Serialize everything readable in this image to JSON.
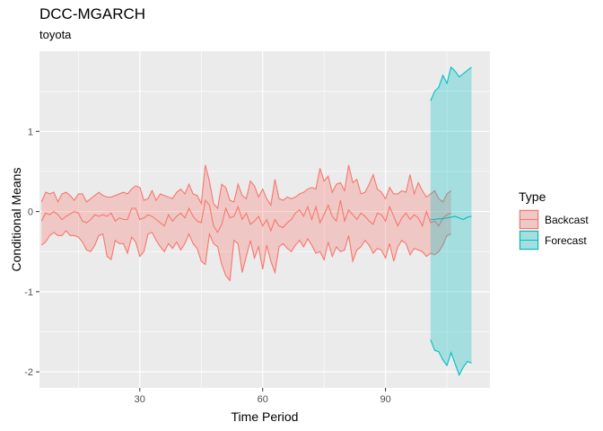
{
  "title": "DCC-MGARCH",
  "subtitle": "toyota",
  "colors": {
    "backcast": "#F8766D",
    "forecast": "#00BFC4",
    "panel": "#EBEBEB",
    "grid": "#FFFFFF"
  },
  "chart_data": {
    "type": "area",
    "title": "DCC-MGARCH",
    "subtitle": "toyota",
    "xlabel": "Time Period",
    "ylabel": "Conditional Means",
    "xlim": [
      5.5,
      115.5
    ],
    "ylim": [
      -2.2,
      2.0
    ],
    "x_ticks": [
      30,
      60,
      90
    ],
    "y_ticks": [
      -2,
      -1,
      0,
      1
    ],
    "x_tick_labels": [
      "30",
      "60",
      "90"
    ],
    "y_tick_labels": [
      "-2",
      "-1",
      "0",
      "1"
    ],
    "grid": true,
    "legend": {
      "title": "Type",
      "position": "right",
      "entries": [
        "Backcast",
        "Forecast"
      ]
    },
    "series": [
      {
        "name": "Backcast",
        "x_start": 6,
        "mean": [
          -0.12,
          -0.02,
          -0.04,
          0.0,
          -0.04,
          -0.1,
          -0.06,
          -0.03,
          0.0,
          -0.02,
          -0.12,
          -0.14,
          -0.1,
          -0.04,
          -0.06,
          -0.04,
          -0.06,
          -0.02,
          -0.12,
          -0.08,
          -0.1,
          -0.1,
          0.04,
          0.04,
          -0.1,
          -0.08,
          -0.04,
          -0.06,
          -0.1,
          -0.14,
          -0.18,
          -0.04,
          -0.12,
          -0.06,
          -0.02,
          -0.08,
          0.04,
          -0.06,
          -0.12,
          -0.14,
          0.14,
          0.08,
          -0.18,
          -0.26,
          -0.16,
          0.04,
          -0.08,
          -0.06,
          0.06,
          -0.1,
          -0.02,
          -0.16,
          -0.12,
          -0.06,
          -0.18,
          -0.1,
          -0.24,
          -0.1,
          -0.18,
          -0.2,
          -0.14,
          -0.1,
          -0.02,
          0.02,
          -0.06,
          0.06,
          -0.1,
          0.06,
          -0.14,
          -0.04,
          0.08,
          -0.06,
          -0.12,
          0.14,
          -0.12,
          0.02,
          -0.04,
          -0.1,
          -0.02,
          -0.06,
          -0.12,
          -0.16,
          -0.02,
          -0.04,
          -0.12,
          0.06,
          -0.06,
          -0.18,
          -0.08,
          -0.02,
          -0.1,
          -0.04,
          -0.08,
          -0.18,
          0.0,
          -0.14,
          -0.12,
          -0.18,
          -0.08,
          -0.04,
          -0.02
        ],
        "upper": [
          0.12,
          0.24,
          0.22,
          0.24,
          0.12,
          0.22,
          0.24,
          0.2,
          0.14,
          0.22,
          0.22,
          0.12,
          0.16,
          0.2,
          0.24,
          0.2,
          0.18,
          0.18,
          0.2,
          0.22,
          0.24,
          0.22,
          0.28,
          0.32,
          0.3,
          0.14,
          0.16,
          0.26,
          0.14,
          0.22,
          0.2,
          0.18,
          0.16,
          0.24,
          0.28,
          0.22,
          0.34,
          0.22,
          0.2,
          0.1,
          0.58,
          0.38,
          0.1,
          0.04,
          0.34,
          0.3,
          0.14,
          0.12,
          0.34,
          0.2,
          0.16,
          0.38,
          0.32,
          0.18,
          0.28,
          0.16,
          0.08,
          0.4,
          0.16,
          0.14,
          0.18,
          0.16,
          0.18,
          0.22,
          0.24,
          0.28,
          0.3,
          0.28,
          0.54,
          0.38,
          0.44,
          0.24,
          0.34,
          0.36,
          0.26,
          0.58,
          0.36,
          0.4,
          0.22,
          0.24,
          0.34,
          0.46,
          0.28,
          0.24,
          0.16,
          0.3,
          0.22,
          0.22,
          0.26,
          0.24,
          0.46,
          0.22,
          0.36,
          0.26,
          0.18,
          0.22,
          0.26,
          0.16,
          0.12,
          0.22,
          0.26
        ],
        "lower": [
          -0.42,
          -0.38,
          -0.3,
          -0.26,
          -0.3,
          -0.3,
          -0.24,
          -0.3,
          -0.3,
          -0.32,
          -0.38,
          -0.48,
          -0.5,
          -0.42,
          -0.3,
          -0.28,
          -0.56,
          -0.6,
          -0.36,
          -0.4,
          -0.4,
          -0.52,
          -0.32,
          -0.38,
          -0.56,
          -0.5,
          -0.28,
          -0.26,
          -0.36,
          -0.44,
          -0.5,
          -0.4,
          -0.46,
          -0.38,
          -0.48,
          -0.4,
          -0.28,
          -0.4,
          -0.46,
          -0.62,
          -0.66,
          -0.28,
          -0.4,
          -0.44,
          -0.66,
          -0.8,
          -0.86,
          -0.36,
          -0.4,
          -0.76,
          -0.56,
          -0.36,
          -0.58,
          -0.44,
          -0.72,
          -0.42,
          -0.62,
          -0.76,
          -0.44,
          -0.4,
          -0.46,
          -0.5,
          -0.42,
          -0.36,
          -0.44,
          -0.34,
          -0.42,
          -0.52,
          -0.5,
          -0.6,
          -0.38,
          -0.56,
          -0.44,
          -0.5,
          -0.48,
          -0.3,
          -0.62,
          -0.48,
          -0.44,
          -0.36,
          -0.42,
          -0.52,
          -0.46,
          -0.48,
          -0.58,
          -0.4,
          -0.62,
          -0.44,
          -0.36,
          -0.4,
          -0.54,
          -0.46,
          -0.48,
          -0.5,
          -0.56,
          -0.52,
          -0.54,
          -0.5,
          -0.42,
          -0.3,
          -0.28
        ]
      },
      {
        "name": "Forecast",
        "x_start": 101,
        "mean": [
          -0.1,
          -0.1,
          -0.09,
          -0.09,
          -0.08,
          -0.07,
          -0.06,
          -0.08,
          -0.1,
          -0.07,
          -0.06
        ],
        "upper": [
          1.38,
          1.5,
          1.55,
          1.7,
          1.6,
          1.8,
          1.75,
          1.68,
          1.72,
          1.76,
          1.8
        ],
        "lower": [
          -1.6,
          -1.73,
          -1.75,
          -1.85,
          -1.92,
          -1.76,
          -1.9,
          -2.04,
          -1.94,
          -1.87,
          -1.89
        ]
      }
    ]
  }
}
